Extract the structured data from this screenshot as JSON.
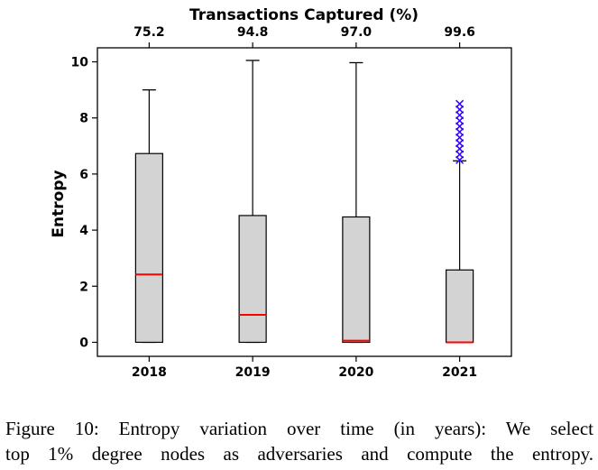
{
  "chart_data": {
    "type": "box",
    "title": "Transactions Captured (%)",
    "ylabel": "Entropy",
    "xlabel": "",
    "ylim": [
      -0.5,
      10.5
    ],
    "yticks": [
      0,
      2,
      4,
      6,
      8,
      10
    ],
    "grid": false,
    "categories": [
      "2018",
      "2019",
      "2020",
      "2021"
    ],
    "top_ticks": [
      "75.2",
      "94.8",
      "97.0",
      "99.6"
    ],
    "boxes": [
      {
        "min": 0,
        "q1": 0,
        "median": 2.42,
        "q3": 6.73,
        "max": 9.0,
        "outliers": []
      },
      {
        "min": 0,
        "q1": 0,
        "median": 0.98,
        "q3": 4.52,
        "max": 10.05,
        "outliers": []
      },
      {
        "min": 0,
        "q1": 0,
        "median": 0.06,
        "q3": 4.47,
        "max": 9.97,
        "outliers": []
      },
      {
        "min": 0,
        "q1": 0,
        "median": 0.0,
        "q3": 2.58,
        "max": 6.47,
        "outliers": [
          6.5,
          6.7,
          6.9,
          7.1,
          7.3,
          7.5,
          7.7,
          7.9,
          8.1,
          8.3,
          8.5
        ]
      }
    ],
    "colors": {
      "box_fill": "#d3d3d3",
      "median": "#ff0000",
      "outlier": "#3300ff",
      "line": "#000000"
    }
  },
  "caption": {
    "line1": "Figure 10: Entropy variation over time (in years): We select",
    "line2": "top 1% degree nodes as adversaries and compute the entropy."
  }
}
